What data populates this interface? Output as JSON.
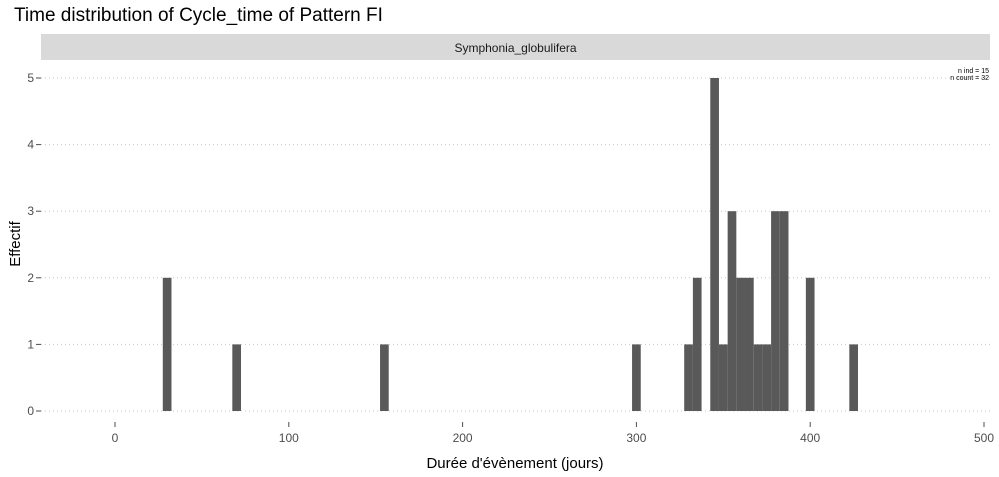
{
  "chart_data": {
    "type": "bar",
    "title": "Time distribution of Cycle_time of Pattern FI",
    "facet_label": "Symphonia_globulifera",
    "xlabel": "Durée d'évènement (jours)",
    "ylabel": "Effectif",
    "xlim": [
      -42,
      500
    ],
    "ylim": [
      0,
      5
    ],
    "bin_width": 5,
    "x_ticks": [
      0,
      100,
      200,
      300,
      400,
      500
    ],
    "y_ticks": [
      0,
      1,
      2,
      3,
      4,
      5
    ],
    "grid": "horizontal-dotted",
    "annotation": [
      "n ind =  15",
      "n count =  32"
    ],
    "bar_color": "#595959",
    "bins": [
      {
        "x": 30,
        "count": 2
      },
      {
        "x": 70,
        "count": 1
      },
      {
        "x": 155,
        "count": 1
      },
      {
        "x": 300,
        "count": 1
      },
      {
        "x": 330,
        "count": 1
      },
      {
        "x": 335,
        "count": 2
      },
      {
        "x": 345,
        "count": 5
      },
      {
        "x": 350,
        "count": 1
      },
      {
        "x": 355,
        "count": 3
      },
      {
        "x": 360,
        "count": 2
      },
      {
        "x": 365,
        "count": 2
      },
      {
        "x": 370,
        "count": 1
      },
      {
        "x": 375,
        "count": 1
      },
      {
        "x": 380,
        "count": 3
      },
      {
        "x": 385,
        "count": 3
      },
      {
        "x": 400,
        "count": 2
      },
      {
        "x": 425,
        "count": 1
      }
    ]
  }
}
